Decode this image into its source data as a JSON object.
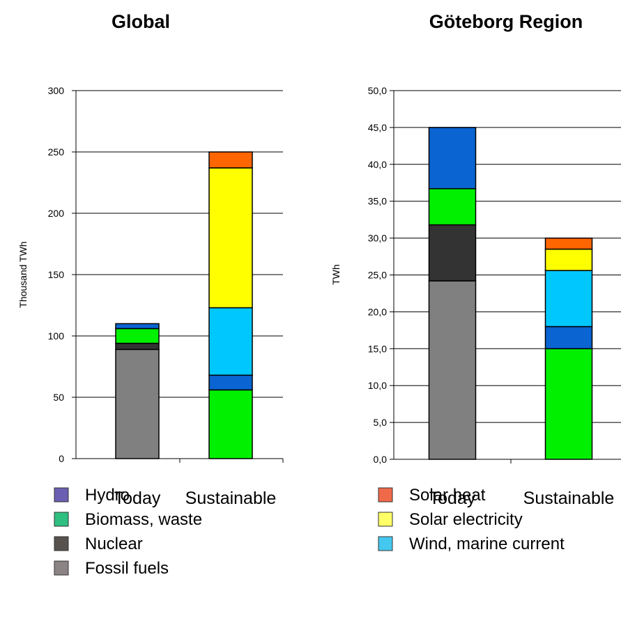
{
  "colors": {
    "Hydro": "#0a64d2",
    "Biomass, waste": "#00f000",
    "Nuclear": "#333333",
    "Fossil fuels": "#808080",
    "Solar heat": "#ff6600",
    "Solar electricity": "#ffff00",
    "Wind, marine current": "#00c8ff"
  },
  "legend_swatch_colors": {
    "Hydro": "#6a5fb3",
    "Biomass, waste": "#2fbf80",
    "Nuclear": "#57524d",
    "Fossil fuels": "#8c8484",
    "Solar heat": "#f06a4a",
    "Solar electricity": "#ffff66",
    "Wind, marine current": "#44c8f0"
  },
  "legend": {
    "left": [
      "Hydro",
      "Biomass, waste",
      "Nuclear",
      "Fossil fuels"
    ],
    "right": [
      "Solar heat",
      "Solar electricity",
      "Wind, marine current"
    ]
  },
  "chart_data": [
    {
      "type": "bar",
      "stacked": true,
      "title": "Global",
      "ylabel": "Thousand TWh",
      "xlabel": "",
      "categories": [
        "Today",
        "Sustainable"
      ],
      "ylim": [
        0,
        300
      ],
      "yticks": [
        0,
        50,
        100,
        150,
        200,
        250,
        300
      ],
      "ytick_labels": [
        "0",
        "50",
        "100",
        "150",
        "200",
        "250",
        "300"
      ],
      "grid": true,
      "series": [
        {
          "name": "Fossil fuels",
          "values": [
            89,
            0
          ]
        },
        {
          "name": "Nuclear",
          "values": [
            5,
            0
          ]
        },
        {
          "name": "Biomass, waste",
          "values": [
            12,
            56
          ]
        },
        {
          "name": "Hydro",
          "values": [
            4,
            12
          ]
        },
        {
          "name": "Wind, marine current",
          "values": [
            0,
            55
          ]
        },
        {
          "name": "Solar electricity",
          "values": [
            0,
            114
          ]
        },
        {
          "name": "Solar heat",
          "values": [
            0,
            13
          ]
        }
      ]
    },
    {
      "type": "bar",
      "stacked": true,
      "title": "Göteborg Region",
      "ylabel": "TWh",
      "xlabel": "",
      "categories": [
        "Today",
        "Sustainable"
      ],
      "ylim": [
        0,
        50
      ],
      "yticks": [
        0,
        5,
        10,
        15,
        20,
        25,
        30,
        35,
        40,
        45,
        50
      ],
      "ytick_labels": [
        "0,0",
        "5,0",
        "10,0",
        "15,0",
        "20,0",
        "25,0",
        "30,0",
        "35,0",
        "40,0",
        "45,0",
        "50,0"
      ],
      "grid": true,
      "series": [
        {
          "name": "Fossil fuels",
          "values": [
            24.2,
            0
          ]
        },
        {
          "name": "Nuclear",
          "values": [
            7.6,
            0
          ]
        },
        {
          "name": "Biomass, waste",
          "values": [
            4.9,
            15
          ]
        },
        {
          "name": "Hydro",
          "values": [
            8.3,
            3
          ]
        },
        {
          "name": "Wind, marine current",
          "values": [
            0,
            7.6
          ]
        },
        {
          "name": "Solar electricity",
          "values": [
            0,
            2.9
          ]
        },
        {
          "name": "Solar heat",
          "values": [
            0,
            1.5
          ]
        }
      ]
    }
  ]
}
